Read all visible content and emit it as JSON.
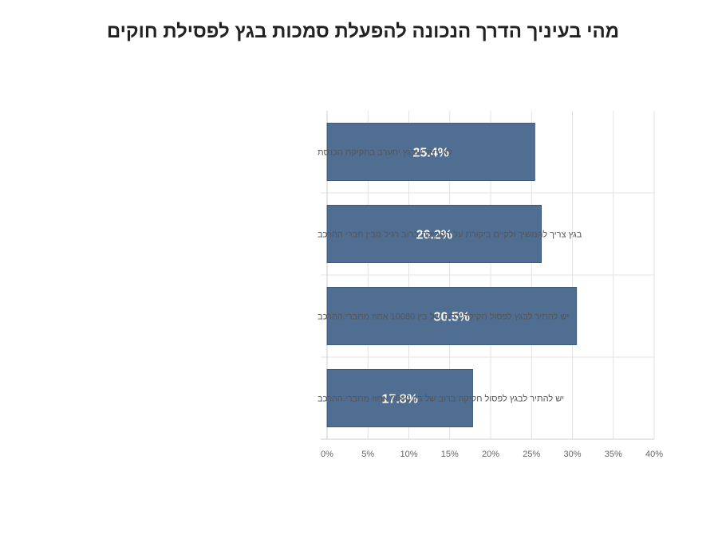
{
  "chart_data": {
    "type": "bar",
    "orientation": "horizontal",
    "title": "מהי בעיניך הדרך הנכונה להפעלת סמכות בגץ לפסילת חוקים",
    "categories": [
      "לא ראוי שבגץ יתערב בחקיקת הכנסת",
      "בגץ צריך להמשיך ולקיים ביקורת על החקיקה ברוב רגיל מבין חברי ההרכב",
      "יש להתיר לבגץ לפסול חקיקה ברוב של בין 10080 אחוז מחברי ההרכב",
      "יש להתיר לבגץ לפסול חקיקה ברוב של בין 7060 אחוז מחברי ההרכב"
    ],
    "values": [
      25.4,
      26.2,
      30.5,
      17.8
    ],
    "value_labels": [
      "25.4%",
      "26.2%",
      "30.5%",
      "17.8%"
    ],
    "x_ticks": [
      "0%",
      "5%",
      "10%",
      "15%",
      "20%",
      "25%",
      "30%",
      "35%",
      "40%"
    ],
    "xlim": [
      0,
      40
    ],
    "grid": true,
    "bar_color": "#506e91",
    "bar_edge_color": "#3f5a7a"
  }
}
